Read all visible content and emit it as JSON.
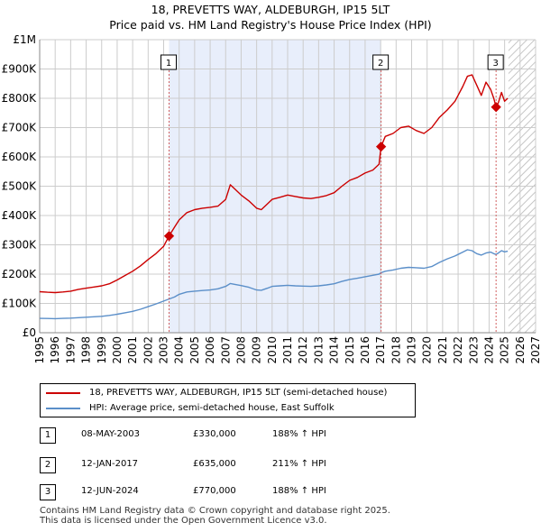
{
  "title_line1": "18, PREVETTS WAY, ALDEBURGH, IP15 5LT",
  "title_line2": "Price paid vs. HM Land Registry's House Price Index (HPI)",
  "colors": {
    "property": "#cc0000",
    "hpi": "#5b8fc9",
    "shade": "#e8eefb",
    "marker_line": "#d06060",
    "grid": "#cccccc"
  },
  "chart_data": {
    "type": "line",
    "xlim": [
      1995,
      2027
    ],
    "ylim": [
      0,
      1000000
    ],
    "x_ticks": [
      "1995",
      "1996",
      "1997",
      "1998",
      "1999",
      "2000",
      "2001",
      "2002",
      "2003",
      "2004",
      "2005",
      "2006",
      "2007",
      "2008",
      "2009",
      "2010",
      "2011",
      "2012",
      "2013",
      "2014",
      "2015",
      "2016",
      "2017",
      "2018",
      "2019",
      "2020",
      "2021",
      "2022",
      "2023",
      "2024",
      "2025",
      "2026",
      "2027"
    ],
    "y_ticks": [
      {
        "value": 0,
        "label": "£0"
      },
      {
        "value": 100000,
        "label": "£100K"
      },
      {
        "value": 200000,
        "label": "£200K"
      },
      {
        "value": 300000,
        "label": "£300K"
      },
      {
        "value": 400000,
        "label": "£400K"
      },
      {
        "value": 500000,
        "label": "£500K"
      },
      {
        "value": 600000,
        "label": "£600K"
      },
      {
        "value": 700000,
        "label": "£700K"
      },
      {
        "value": 800000,
        "label": "£800K"
      },
      {
        "value": 900000,
        "label": "£900K"
      },
      {
        "value": 1000000,
        "label": "£1M"
      }
    ],
    "shaded_region": [
      2003.35,
      2017.03
    ],
    "future_hatch_start": 2025.25,
    "series": [
      {
        "name": "18, PREVETTS WAY, ALDEBURGH, IP15 5LT (semi-detached house)",
        "x": [
          1995.0,
          1995.5,
          1996.0,
          1996.5,
          1997.0,
          1997.5,
          1998.0,
          1998.5,
          1999.0,
          1999.5,
          2000.0,
          2000.5,
          2001.0,
          2001.5,
          2002.0,
          2002.5,
          2003.0,
          2003.35,
          2003.7,
          2004.0,
          2004.5,
          2005.0,
          2005.5,
          2006.0,
          2006.5,
          2007.0,
          2007.3,
          2007.6,
          2008.0,
          2008.5,
          2009.0,
          2009.3,
          2009.7,
          2010.0,
          2010.5,
          2011.0,
          2011.5,
          2012.0,
          2012.5,
          2013.0,
          2013.5,
          2014.0,
          2014.5,
          2015.0,
          2015.5,
          2016.0,
          2016.5,
          2016.9,
          2017.03,
          2017.3,
          2017.8,
          2018.3,
          2018.8,
          2019.3,
          2019.8,
          2020.3,
          2020.8,
          2021.3,
          2021.8,
          2022.3,
          2022.6,
          2022.9,
          2023.2,
          2023.5,
          2023.8,
          2024.1,
          2024.3,
          2024.45,
          2024.6,
          2024.8,
          2025.0,
          2025.2
        ],
        "y": [
          140000,
          138000,
          137000,
          139000,
          142000,
          148000,
          152000,
          156000,
          160000,
          167000,
          180000,
          195000,
          210000,
          228000,
          250000,
          270000,
          295000,
          330000,
          360000,
          385000,
          410000,
          420000,
          425000,
          428000,
          432000,
          455000,
          505000,
          490000,
          470000,
          450000,
          425000,
          420000,
          440000,
          455000,
          462000,
          470000,
          465000,
          460000,
          458000,
          462000,
          468000,
          478000,
          500000,
          520000,
          530000,
          545000,
          555000,
          575000,
          635000,
          670000,
          680000,
          700000,
          705000,
          690000,
          680000,
          700000,
          735000,
          760000,
          790000,
          840000,
          875000,
          880000,
          845000,
          810000,
          855000,
          830000,
          800000,
          770000,
          785000,
          820000,
          790000,
          800000
        ],
        "color": "#cc0000"
      },
      {
        "name": "HPI: Average price, semi-detached house, East Suffolk",
        "x": [
          1995.0,
          1995.5,
          1996.0,
          1996.5,
          1997.0,
          1997.5,
          1998.0,
          1998.5,
          1999.0,
          1999.5,
          2000.0,
          2000.5,
          2001.0,
          2001.5,
          2002.0,
          2002.5,
          2003.0,
          2003.35,
          2003.7,
          2004.0,
          2004.5,
          2005.0,
          2005.5,
          2006.0,
          2006.5,
          2007.0,
          2007.3,
          2007.6,
          2008.0,
          2008.5,
          2009.0,
          2009.3,
          2009.7,
          2010.0,
          2010.5,
          2011.0,
          2011.5,
          2012.0,
          2012.5,
          2013.0,
          2013.5,
          2014.0,
          2014.5,
          2015.0,
          2015.5,
          2016.0,
          2016.5,
          2016.9,
          2017.03,
          2017.3,
          2017.8,
          2018.3,
          2018.8,
          2019.3,
          2019.8,
          2020.3,
          2020.8,
          2021.3,
          2021.8,
          2022.3,
          2022.6,
          2022.9,
          2023.2,
          2023.5,
          2023.8,
          2024.1,
          2024.3,
          2024.45,
          2024.6,
          2024.8,
          2025.0,
          2025.2
        ],
        "y": [
          49000,
          48500,
          48000,
          49000,
          50000,
          51500,
          53000,
          54500,
          56000,
          59000,
          63000,
          68000,
          73000,
          80000,
          89000,
          98000,
          108000,
          115000,
          122000,
          131000,
          139000,
          142000,
          144000,
          146000,
          150000,
          158000,
          168000,
          165000,
          161000,
          155000,
          146000,
          145000,
          152000,
          158000,
          160000,
          162000,
          160000,
          159000,
          158000,
          160000,
          163000,
          167000,
          175000,
          182000,
          186000,
          191000,
          196000,
          200000,
          205000,
          210000,
          214000,
          220000,
          223000,
          222000,
          220000,
          226000,
          240000,
          252000,
          262000,
          275000,
          283000,
          280000,
          270000,
          265000,
          272000,
          275000,
          270000,
          267000,
          272000,
          280000,
          276000,
          278000
        ],
        "color": "#5b8fc9"
      }
    ],
    "transactions_markers": [
      {
        "label": "1",
        "x": 2003.35,
        "y": 330000
      },
      {
        "label": "2",
        "x": 2017.03,
        "y": 635000
      },
      {
        "label": "3",
        "x": 2024.45,
        "y": 770000
      }
    ]
  },
  "legend": {
    "property_label": "18, PREVETTS WAY, ALDEBURGH, IP15 5LT (semi-detached house)",
    "hpi_label": "HPI: Average price, semi-detached house, East Suffolk"
  },
  "transactions": [
    {
      "num": "1",
      "date": "08-MAY-2003",
      "price": "£330,000",
      "hpi": "188% ↑ HPI"
    },
    {
      "num": "2",
      "date": "12-JAN-2017",
      "price": "£635,000",
      "hpi": "211% ↑ HPI"
    },
    {
      "num": "3",
      "date": "12-JUN-2024",
      "price": "£770,000",
      "hpi": "188% ↑ HPI"
    }
  ],
  "footer_line1": "Contains HM Land Registry data © Crown copyright and database right 2025.",
  "footer_line2": "This data is licensed under the Open Government Licence v3.0."
}
